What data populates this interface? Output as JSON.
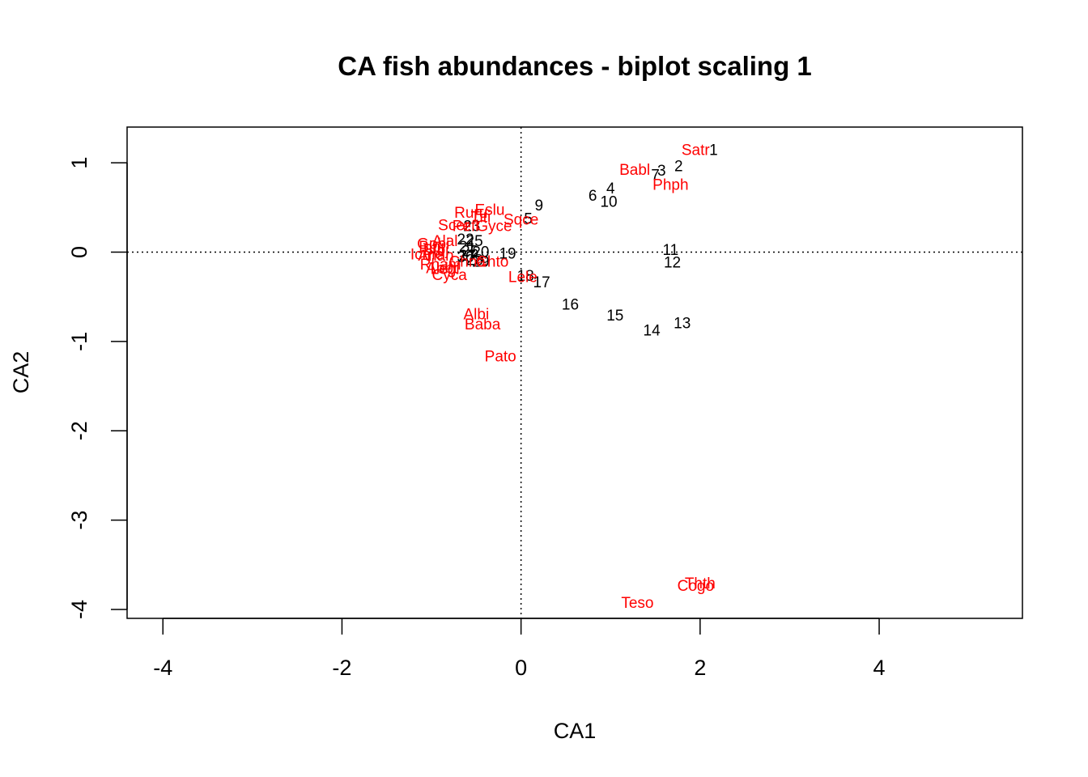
{
  "chart_data": {
    "type": "scatter",
    "title": "CA fish abundances - biplot scaling 1",
    "xlabel": "CA1",
    "ylabel": "CA2",
    "xlim": [
      -4.4,
      5.6
    ],
    "ylim": [
      -4.1,
      1.4
    ],
    "xticks": [
      -4,
      -2,
      0,
      2,
      4
    ],
    "yticks": [
      -4,
      -3,
      -2,
      -1,
      0,
      1
    ],
    "reference_lines": {
      "x": 0,
      "y": 0,
      "style": "dotted"
    },
    "colors": {
      "sites": "#000000",
      "species": "#ff0000"
    },
    "sites": [
      {
        "label": "1",
        "x": 2.15,
        "y": 1.15
      },
      {
        "label": "2",
        "x": 1.76,
        "y": 0.97
      },
      {
        "label": "3",
        "x": 1.57,
        "y": 0.92
      },
      {
        "label": "7",
        "x": 1.5,
        "y": 0.87
      },
      {
        "label": "4",
        "x": 1.0,
        "y": 0.72
      },
      {
        "label": "6",
        "x": 0.8,
        "y": 0.64
      },
      {
        "label": "10",
        "x": 0.98,
        "y": 0.57
      },
      {
        "label": "9",
        "x": 0.2,
        "y": 0.53
      },
      {
        "label": "5",
        "x": 0.08,
        "y": 0.38
      },
      {
        "label": "11",
        "x": 1.67,
        "y": 0.03
      },
      {
        "label": "12",
        "x": 1.69,
        "y": -0.11
      },
      {
        "label": "19",
        "x": -0.15,
        "y": -0.01
      },
      {
        "label": "18",
        "x": 0.05,
        "y": -0.26
      },
      {
        "label": "17",
        "x": 0.23,
        "y": -0.33
      },
      {
        "label": "16",
        "x": 0.55,
        "y": -0.58
      },
      {
        "label": "15",
        "x": 1.05,
        "y": -0.7
      },
      {
        "label": "13",
        "x": 1.8,
        "y": -0.79
      },
      {
        "label": "14",
        "x": 1.46,
        "y": -0.87
      },
      {
        "label": "23",
        "x": -0.55,
        "y": 0.3
      },
      {
        "label": "22",
        "x": -0.62,
        "y": 0.15
      },
      {
        "label": "25",
        "x": -0.52,
        "y": 0.13
      },
      {
        "label": "21",
        "x": -0.6,
        "y": 0.07
      },
      {
        "label": "26",
        "x": -0.57,
        "y": 0.02
      },
      {
        "label": "20",
        "x": -0.45,
        "y": 0.01
      },
      {
        "label": "27",
        "x": -0.6,
        "y": -0.03
      },
      {
        "label": "28",
        "x": -0.52,
        "y": -0.08
      },
      {
        "label": "30",
        "x": -0.62,
        "y": -0.05
      },
      {
        "label": "29",
        "x": -0.45,
        "y": -0.1
      }
    ],
    "species": [
      {
        "label": "Satr",
        "x": 1.95,
        "y": 1.15
      },
      {
        "label": "Babl",
        "x": 1.27,
        "y": 0.93
      },
      {
        "label": "Phph",
        "x": 1.67,
        "y": 0.76
      },
      {
        "label": "Eslu",
        "x": -0.35,
        "y": 0.48
      },
      {
        "label": "Ruru",
        "x": -0.56,
        "y": 0.45
      },
      {
        "label": "Titi",
        "x": -0.45,
        "y": 0.4
      },
      {
        "label": "Sqce",
        "x": 0.0,
        "y": 0.37
      },
      {
        "label": "Scer",
        "x": -0.75,
        "y": 0.31
      },
      {
        "label": "Gyce",
        "x": -0.3,
        "y": 0.3
      },
      {
        "label": "Alal",
        "x": -0.85,
        "y": 0.13
      },
      {
        "label": "Gobi",
        "x": -0.98,
        "y": 0.1
      },
      {
        "label": "Bjbj",
        "x": -1.0,
        "y": 0.07
      },
      {
        "label": "Blbj",
        "x": -0.95,
        "y": 0.03
      },
      {
        "label": "Icme",
        "x": -1.05,
        "y": -0.02
      },
      {
        "label": "Anan",
        "x": -0.95,
        "y": -0.03
      },
      {
        "label": "Chna",
        "x": -0.6,
        "y": -0.1
      },
      {
        "label": "Rham",
        "x": -0.9,
        "y": -0.13
      },
      {
        "label": "Abbr",
        "x": -0.88,
        "y": -0.17
      },
      {
        "label": "Legi",
        "x": -0.85,
        "y": -0.18
      },
      {
        "label": "Chto",
        "x": -0.32,
        "y": -0.1
      },
      {
        "label": "Pefl",
        "x": -0.62,
        "y": 0.3
      },
      {
        "label": "Cyca",
        "x": -0.8,
        "y": -0.25
      },
      {
        "label": "Lele",
        "x": 0.02,
        "y": -0.27
      },
      {
        "label": "Albi",
        "x": -0.5,
        "y": -0.69
      },
      {
        "label": "Baba",
        "x": -0.43,
        "y": -0.8
      },
      {
        "label": "Pato",
        "x": -0.23,
        "y": -1.16
      },
      {
        "label": "Thth",
        "x": 2.0,
        "y": -3.7
      },
      {
        "label": "Cogo",
        "x": 1.95,
        "y": -3.73
      },
      {
        "label": "Teso",
        "x": 1.3,
        "y": -3.92
      }
    ]
  }
}
